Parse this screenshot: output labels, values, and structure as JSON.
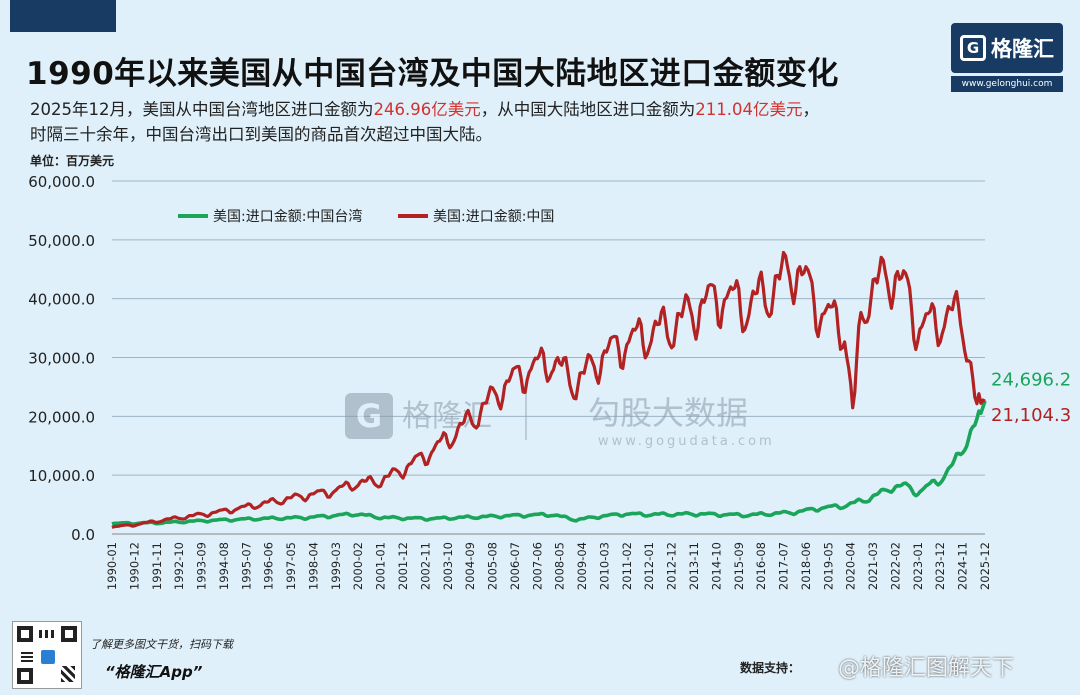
{
  "header": {
    "title": "1990年以来美国从中国台湾及中国大陆地区进口金额变化",
    "subtitle_line1_a": "2025年12月，美国从中国台湾地区进口金额为",
    "subtitle_line1_b": "246.96亿美元",
    "subtitle_line1_c": "，从中国大陆地区进口金额为",
    "subtitle_line1_d": "211.04亿美元",
    "subtitle_line1_e": "，",
    "subtitle_line2": "时隔三十余年，中国台湾出口到美国的商品首次超过中国大陆。"
  },
  "brand": {
    "logo": "格隆汇",
    "url": "www.gelonghui.com"
  },
  "footer": {
    "qr_caption": "了解更多图文干货，扫码下载",
    "app_name": "“格隆汇App”",
    "source": "数据支持：",
    "weibo_watermark": "@格隆汇图解天下"
  },
  "chart_data": {
    "type": "line",
    "title": "1990年以来美国从中国台湾及中国大陆地区进口金额变化",
    "unit": "单位：百万美元",
    "ylim": [
      0,
      60000
    ],
    "yticks": [
      "60,000.0",
      "50,000.0",
      "40,000.0",
      "30,000.0",
      "20,000.0",
      "10,000.0",
      "0.0"
    ],
    "xlabels": [
      "1990-01",
      "1990-12",
      "1991-11",
      "1992-10",
      "1993-09",
      "1994-08",
      "1995-07",
      "1996-06",
      "1997-05",
      "1998-04",
      "1999-03",
      "2000-02",
      "2001-01",
      "2001-12",
      "2002-11",
      "2003-10",
      "2004-09",
      "2005-08",
      "2006-07",
      "2007-06",
      "2008-05",
      "2009-04",
      "2010-03",
      "2011-02",
      "2012-01",
      "2012-12",
      "2013-11",
      "2014-10",
      "2015-09",
      "2016-08",
      "2017-07",
      "2018-06",
      "2019-05",
      "2020-04",
      "2021-03",
      "2022-02",
      "2023-01",
      "2023-12",
      "2024-11",
      "2025-12"
    ],
    "grid": true,
    "legend_position": "top-left",
    "watermark": [
      "格隆汇",
      "勾股大数据",
      "www.gogudata.com"
    ],
    "series": [
      {
        "name": "美国:进口金额:中国台湾",
        "color": "#1aa55a",
        "end_label": "24,696.2",
        "points": [
          [
            1990,
            1800
          ],
          [
            1992,
            1900
          ],
          [
            1994,
            2300
          ],
          [
            1996,
            2600
          ],
          [
            1998,
            2800
          ],
          [
            2000,
            3400
          ],
          [
            2001,
            2800
          ],
          [
            2003,
            2600
          ],
          [
            2005,
            2900
          ],
          [
            2007,
            3200
          ],
          [
            2008,
            3300
          ],
          [
            2009,
            2400
          ],
          [
            2010,
            3000
          ],
          [
            2011,
            3400
          ],
          [
            2012,
            3300
          ],
          [
            2014,
            3400
          ],
          [
            2016,
            3200
          ],
          [
            2018,
            3700
          ],
          [
            2019,
            4400
          ],
          [
            2020,
            4800
          ],
          [
            2021,
            6000
          ],
          [
            2022,
            8000
          ],
          [
            2022.5,
            8200
          ],
          [
            2023,
            7000
          ],
          [
            2023.5,
            8300
          ],
          [
            2024,
            9500
          ],
          [
            2024.5,
            12000
          ],
          [
            2025,
            16000
          ],
          [
            2025.5,
            19500
          ],
          [
            2025.917,
            24696.2
          ]
        ]
      },
      {
        "name": "美国:进口金额:中国",
        "color": "#b22222",
        "end_label": "21,104.3",
        "points": [
          [
            1990,
            1200
          ],
          [
            1991,
            1600
          ],
          [
            1992,
            2300
          ],
          [
            1993,
            2900
          ],
          [
            1994,
            3500
          ],
          [
            1995,
            4200
          ],
          [
            1996,
            5000
          ],
          [
            1997,
            5800
          ],
          [
            1998,
            6600
          ],
          [
            1999,
            7200
          ],
          [
            2000,
            8600
          ],
          [
            2001,
            9000
          ],
          [
            2002,
            11200
          ],
          [
            2003,
            13800
          ],
          [
            2004,
            17000
          ],
          [
            2005,
            20500
          ],
          [
            2006,
            25000
          ],
          [
            2007,
            27800
          ],
          [
            2008,
            29500
          ],
          [
            2009,
            25500
          ],
          [
            2010,
            30000
          ],
          [
            2011,
            32500
          ],
          [
            2012,
            34000
          ],
          [
            2013,
            35500
          ],
          [
            2014,
            38500
          ],
          [
            2015,
            40500
          ],
          [
            2016,
            38500
          ],
          [
            2017,
            41500
          ],
          [
            2018,
            45500
          ],
          [
            2019,
            38000
          ],
          [
            2020,
            35000
          ],
          [
            2020.35,
            20000
          ],
          [
            2020.7,
            38000
          ],
          [
            2021,
            41000
          ],
          [
            2022,
            44500
          ],
          [
            2022.6,
            40500
          ],
          [
            2023,
            35000
          ],
          [
            2024,
            36500
          ],
          [
            2024.8,
            37500
          ],
          [
            2025.1,
            30000
          ],
          [
            2025.4,
            21000
          ],
          [
            2025.7,
            23000
          ],
          [
            2025.917,
            21104.3
          ]
        ]
      }
    ]
  }
}
